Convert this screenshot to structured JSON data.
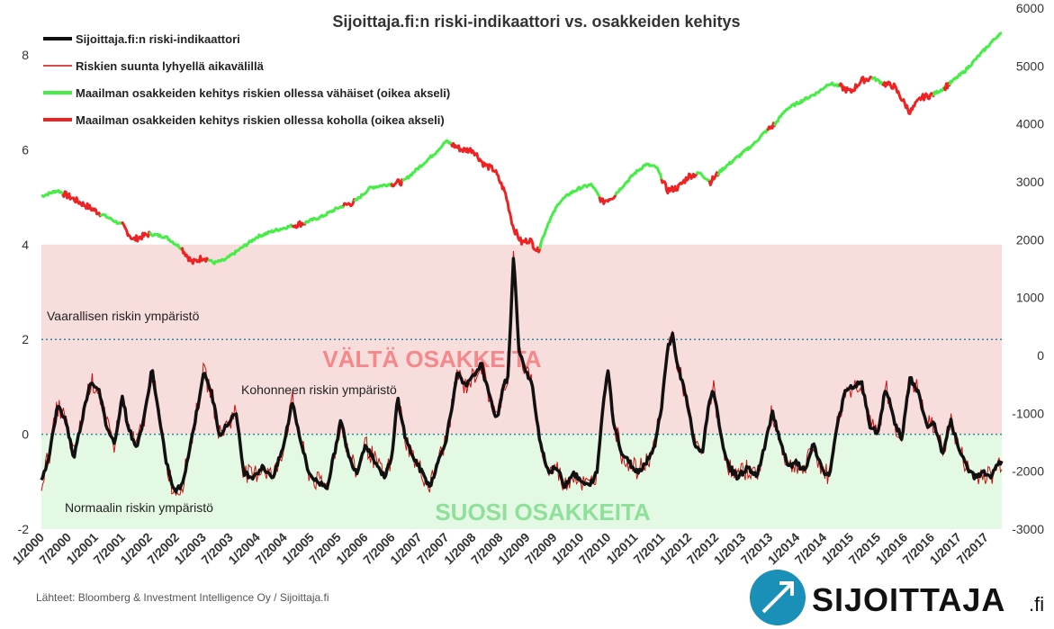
{
  "chart_data": {
    "type": "line",
    "title": "Sijoittaja.fi:n riski-indikaattori vs. osakkeiden kehitys",
    "y_left": {
      "range": [
        -2,
        9
      ],
      "ticks": [
        "-2",
        "0",
        "2",
        "4",
        "6",
        "8"
      ],
      "tick_values": [
        -2,
        0,
        2,
        4,
        6,
        8
      ]
    },
    "y_right": {
      "range": [
        -3000,
        6000
      ],
      "ticks": [
        "-3000",
        "-2000",
        "-1000",
        "0",
        "1000",
        "2000",
        "3000",
        "4000",
        "5000",
        "6000"
      ],
      "tick_values": [
        -3000,
        -2000,
        -1000,
        0,
        1000,
        2000,
        3000,
        4000,
        5000,
        6000
      ]
    },
    "x_ticks": [
      "1/2000",
      "7/2000",
      "1/2001",
      "7/2001",
      "1/2002",
      "7/2002",
      "1/2003",
      "7/2003",
      "1/2004",
      "7/2004",
      "1/2005",
      "7/2005",
      "1/2006",
      "7/2006",
      "1/2007",
      "7/2007",
      "1/2008",
      "7/2008",
      "1/2009",
      "7/2009",
      "1/2010",
      "7/2010",
      "1/2011",
      "7/2011",
      "1/2012",
      "7/2012",
      "1/2013",
      "7/2013",
      "1/2014",
      "7/2014",
      "1/2015",
      "7/2015",
      "1/2016",
      "7/2016",
      "1/2017",
      "7/2017"
    ],
    "x_range": [
      2000.0,
      2017.8
    ],
    "zones": [
      {
        "from": -2,
        "to": 0,
        "color": "#e3f9e3",
        "label": "SUOSI OSAKKEITA",
        "label_color": "#8fe09a"
      },
      {
        "from": 0,
        "to": 4,
        "color": "#f8dddd",
        "label": "VÄLTÄ OSAKKEITA",
        "label_color": "#f4888b"
      }
    ],
    "reference_lines": [
      {
        "y": 2,
        "label": "Vaarallisen riskin ympäristö",
        "color": "#2e8b9a"
      },
      {
        "y": 0,
        "label": "Kohonneen riskin ympäristö",
        "color": "#2e8b9a"
      }
    ],
    "bottom_zone_note": "Normaalin riskin ympäristö",
    "series": [
      {
        "name": "Sijoittaja.fi:n riski-indikaattori",
        "axis": "left",
        "color": "#111111",
        "points": [
          [
            2000.0,
            -1.0
          ],
          [
            2000.15,
            -0.4
          ],
          [
            2000.3,
            0.6
          ],
          [
            2000.45,
            0.3
          ],
          [
            2000.6,
            -0.5
          ],
          [
            2000.75,
            0.3
          ],
          [
            2000.9,
            1.1
          ],
          [
            2001.05,
            1.0
          ],
          [
            2001.2,
            0.2
          ],
          [
            2001.35,
            -0.2
          ],
          [
            2001.5,
            0.8
          ],
          [
            2001.6,
            0.2
          ],
          [
            2001.75,
            -0.3
          ],
          [
            2001.9,
            0.3
          ],
          [
            2002.05,
            1.4
          ],
          [
            2002.15,
            0.6
          ],
          [
            2002.3,
            -0.5
          ],
          [
            2002.45,
            -1.2
          ],
          [
            2002.6,
            -1.1
          ],
          [
            2002.75,
            -0.3
          ],
          [
            2002.9,
            0.6
          ],
          [
            2003.0,
            1.3
          ],
          [
            2003.15,
            0.9
          ],
          [
            2003.3,
            0.0
          ],
          [
            2003.45,
            0.2
          ],
          [
            2003.6,
            0.5
          ],
          [
            2003.75,
            -0.8
          ],
          [
            2003.9,
            -0.9
          ],
          [
            2004.1,
            -0.7
          ],
          [
            2004.3,
            -0.9
          ],
          [
            2004.5,
            -0.2
          ],
          [
            2004.65,
            0.7
          ],
          [
            2004.8,
            -0.1
          ],
          [
            2004.95,
            -0.8
          ],
          [
            2005.1,
            -1.0
          ],
          [
            2005.3,
            -1.1
          ],
          [
            2005.45,
            -0.3
          ],
          [
            2005.55,
            0.3
          ],
          [
            2005.7,
            -0.5
          ],
          [
            2005.85,
            -0.8
          ],
          [
            2006.0,
            -0.2
          ],
          [
            2006.2,
            -0.6
          ],
          [
            2006.35,
            -0.9
          ],
          [
            2006.5,
            -0.5
          ],
          [
            2006.6,
            0.8
          ],
          [
            2006.75,
            -0.1
          ],
          [
            2006.9,
            -0.5
          ],
          [
            2007.05,
            -0.8
          ],
          [
            2007.2,
            -1.1
          ],
          [
            2007.35,
            -0.6
          ],
          [
            2007.5,
            -0.1
          ],
          [
            2007.6,
            0.5
          ],
          [
            2007.7,
            1.3
          ],
          [
            2007.85,
            1.0
          ],
          [
            2008.0,
            1.2
          ],
          [
            2008.15,
            1.5
          ],
          [
            2008.3,
            0.8
          ],
          [
            2008.45,
            0.3
          ],
          [
            2008.55,
            1.0
          ],
          [
            2008.65,
            1.2
          ],
          [
            2008.75,
            3.8
          ],
          [
            2008.85,
            1.8
          ],
          [
            2008.95,
            1.4
          ],
          [
            2009.1,
            1.0
          ],
          [
            2009.25,
            -0.2
          ],
          [
            2009.4,
            -0.8
          ],
          [
            2009.55,
            -0.7
          ],
          [
            2009.7,
            -1.1
          ],
          [
            2009.85,
            -0.8
          ],
          [
            2010.0,
            -1.0
          ],
          [
            2010.15,
            -1.1
          ],
          [
            2010.3,
            -0.8
          ],
          [
            2010.4,
            0.5
          ],
          [
            2010.5,
            1.4
          ],
          [
            2010.6,
            0.3
          ],
          [
            2010.75,
            -0.4
          ],
          [
            2010.9,
            -0.6
          ],
          [
            2011.05,
            -0.8
          ],
          [
            2011.2,
            -0.6
          ],
          [
            2011.35,
            -0.3
          ],
          [
            2011.5,
            0.6
          ],
          [
            2011.6,
            1.8
          ],
          [
            2011.7,
            2.1
          ],
          [
            2011.8,
            1.4
          ],
          [
            2011.95,
            0.8
          ],
          [
            2012.1,
            -0.2
          ],
          [
            2012.25,
            -0.4
          ],
          [
            2012.35,
            0.5
          ],
          [
            2012.45,
            1.0
          ],
          [
            2012.6,
            -0.1
          ],
          [
            2012.75,
            -0.7
          ],
          [
            2012.9,
            -0.9
          ],
          [
            2013.1,
            -0.7
          ],
          [
            2013.25,
            -0.9
          ],
          [
            2013.4,
            -0.3
          ],
          [
            2013.55,
            0.5
          ],
          [
            2013.7,
            -0.2
          ],
          [
            2013.85,
            -0.7
          ],
          [
            2014.0,
            -0.6
          ],
          [
            2014.15,
            -0.8
          ],
          [
            2014.3,
            -0.2
          ],
          [
            2014.45,
            -0.7
          ],
          [
            2014.6,
            -0.9
          ],
          [
            2014.75,
            0.2
          ],
          [
            2014.9,
            0.9
          ],
          [
            2015.05,
            1.0
          ],
          [
            2015.2,
            1.1
          ],
          [
            2015.35,
            0.2
          ],
          [
            2015.5,
            0.0
          ],
          [
            2015.65,
            1.0
          ],
          [
            2015.8,
            0.3
          ],
          [
            2015.95,
            -0.1
          ],
          [
            2016.1,
            1.2
          ],
          [
            2016.25,
            0.9
          ],
          [
            2016.4,
            0.2
          ],
          [
            2016.55,
            0.2
          ],
          [
            2016.7,
            -0.4
          ],
          [
            2016.85,
            0.3
          ],
          [
            2017.0,
            -0.3
          ],
          [
            2017.15,
            -0.7
          ],
          [
            2017.3,
            -0.9
          ],
          [
            2017.45,
            -0.8
          ],
          [
            2017.6,
            -0.9
          ],
          [
            2017.75,
            -0.6
          ]
        ]
      },
      {
        "name": "Riskien suunta lyhyellä aikavälillä",
        "axis": "left",
        "color": "#cc1111"
      },
      {
        "name": "Maailman osakkeiden kehitys riskien ollessa vähäiset (oikea akseli)",
        "axis": "right",
        "color": "#44ee44"
      },
      {
        "name": "Maailman osakkeiden kehitys riskien ollessa koholla (oikea akseli)",
        "axis": "right",
        "color": "#ee2222",
        "points": [
          [
            2000.0,
            2750
          ],
          [
            2000.3,
            2850
          ],
          [
            2000.6,
            2700
          ],
          [
            2000.9,
            2550
          ],
          [
            2001.2,
            2400
          ],
          [
            2001.5,
            2250
          ],
          [
            2001.7,
            2000
          ],
          [
            2002.0,
            2100
          ],
          [
            2002.3,
            2050
          ],
          [
            2002.6,
            1850
          ],
          [
            2002.8,
            1600
          ],
          [
            2003.0,
            1700
          ],
          [
            2003.2,
            1600
          ],
          [
            2003.4,
            1650
          ],
          [
            2003.7,
            1850
          ],
          [
            2004.0,
            2050
          ],
          [
            2004.3,
            2150
          ],
          [
            2004.6,
            2230
          ],
          [
            2004.9,
            2300
          ],
          [
            2005.2,
            2400
          ],
          [
            2005.5,
            2550
          ],
          [
            2005.8,
            2650
          ],
          [
            2006.1,
            2900
          ],
          [
            2006.4,
            2950
          ],
          [
            2006.7,
            3000
          ],
          [
            2007.0,
            3250
          ],
          [
            2007.3,
            3500
          ],
          [
            2007.5,
            3700
          ],
          [
            2007.8,
            3550
          ],
          [
            2008.0,
            3550
          ],
          [
            2008.2,
            3300
          ],
          [
            2008.4,
            3200
          ],
          [
            2008.6,
            2800
          ],
          [
            2008.75,
            2200
          ],
          [
            2008.9,
            1950
          ],
          [
            2009.05,
            2000
          ],
          [
            2009.2,
            1800
          ],
          [
            2009.4,
            2300
          ],
          [
            2009.6,
            2650
          ],
          [
            2009.8,
            2800
          ],
          [
            2010.0,
            2900
          ],
          [
            2010.2,
            2950
          ],
          [
            2010.4,
            2650
          ],
          [
            2010.6,
            2750
          ],
          [
            2010.8,
            2950
          ],
          [
            2011.0,
            3150
          ],
          [
            2011.2,
            3300
          ],
          [
            2011.4,
            3250
          ],
          [
            2011.6,
            2850
          ],
          [
            2011.8,
            2900
          ],
          [
            2012.0,
            3100
          ],
          [
            2012.2,
            3150
          ],
          [
            2012.4,
            3000
          ],
          [
            2012.6,
            3200
          ],
          [
            2012.8,
            3350
          ],
          [
            2013.0,
            3500
          ],
          [
            2013.2,
            3650
          ],
          [
            2013.4,
            3850
          ],
          [
            2013.6,
            4000
          ],
          [
            2013.8,
            4250
          ],
          [
            2014.0,
            4350
          ],
          [
            2014.2,
            4450
          ],
          [
            2014.4,
            4550
          ],
          [
            2014.6,
            4700
          ],
          [
            2014.8,
            4650
          ],
          [
            2015.0,
            4550
          ],
          [
            2015.2,
            4750
          ],
          [
            2015.4,
            4800
          ],
          [
            2015.6,
            4700
          ],
          [
            2015.8,
            4650
          ],
          [
            2016.0,
            4350
          ],
          [
            2016.1,
            4200
          ],
          [
            2016.3,
            4450
          ],
          [
            2016.5,
            4500
          ],
          [
            2016.7,
            4600
          ],
          [
            2016.9,
            4750
          ],
          [
            2017.1,
            4900
          ],
          [
            2017.3,
            5100
          ],
          [
            2017.5,
            5300
          ],
          [
            2017.75,
            5550
          ]
        ],
        "low_risk_segments": [
          [
            2000.0,
            2000.4
          ],
          [
            2001.1,
            2001.5
          ],
          [
            2002.0,
            2002.6
          ],
          [
            2003.1,
            2004.65
          ],
          [
            2004.9,
            2005.6
          ],
          [
            2005.8,
            2006.5
          ],
          [
            2006.7,
            2007.6
          ],
          [
            2009.25,
            2010.35
          ],
          [
            2010.65,
            2011.5
          ],
          [
            2012.15,
            2012.4
          ],
          [
            2012.55,
            2013.45
          ],
          [
            2013.6,
            2014.8
          ],
          [
            2015.4,
            2015.6
          ],
          [
            2016.55,
            2016.75
          ],
          [
            2016.85,
            2017.8
          ]
        ]
      }
    ],
    "legend_placement": "top-left",
    "grid": false
  },
  "source": "Lähteet: Bloomberg & Investment Intelligence Oy / Sijoittaja.fi",
  "logo": {
    "text": "SIJOITTAJA",
    "suffix": ".fi",
    "circle_color": "#1a8fb8"
  }
}
